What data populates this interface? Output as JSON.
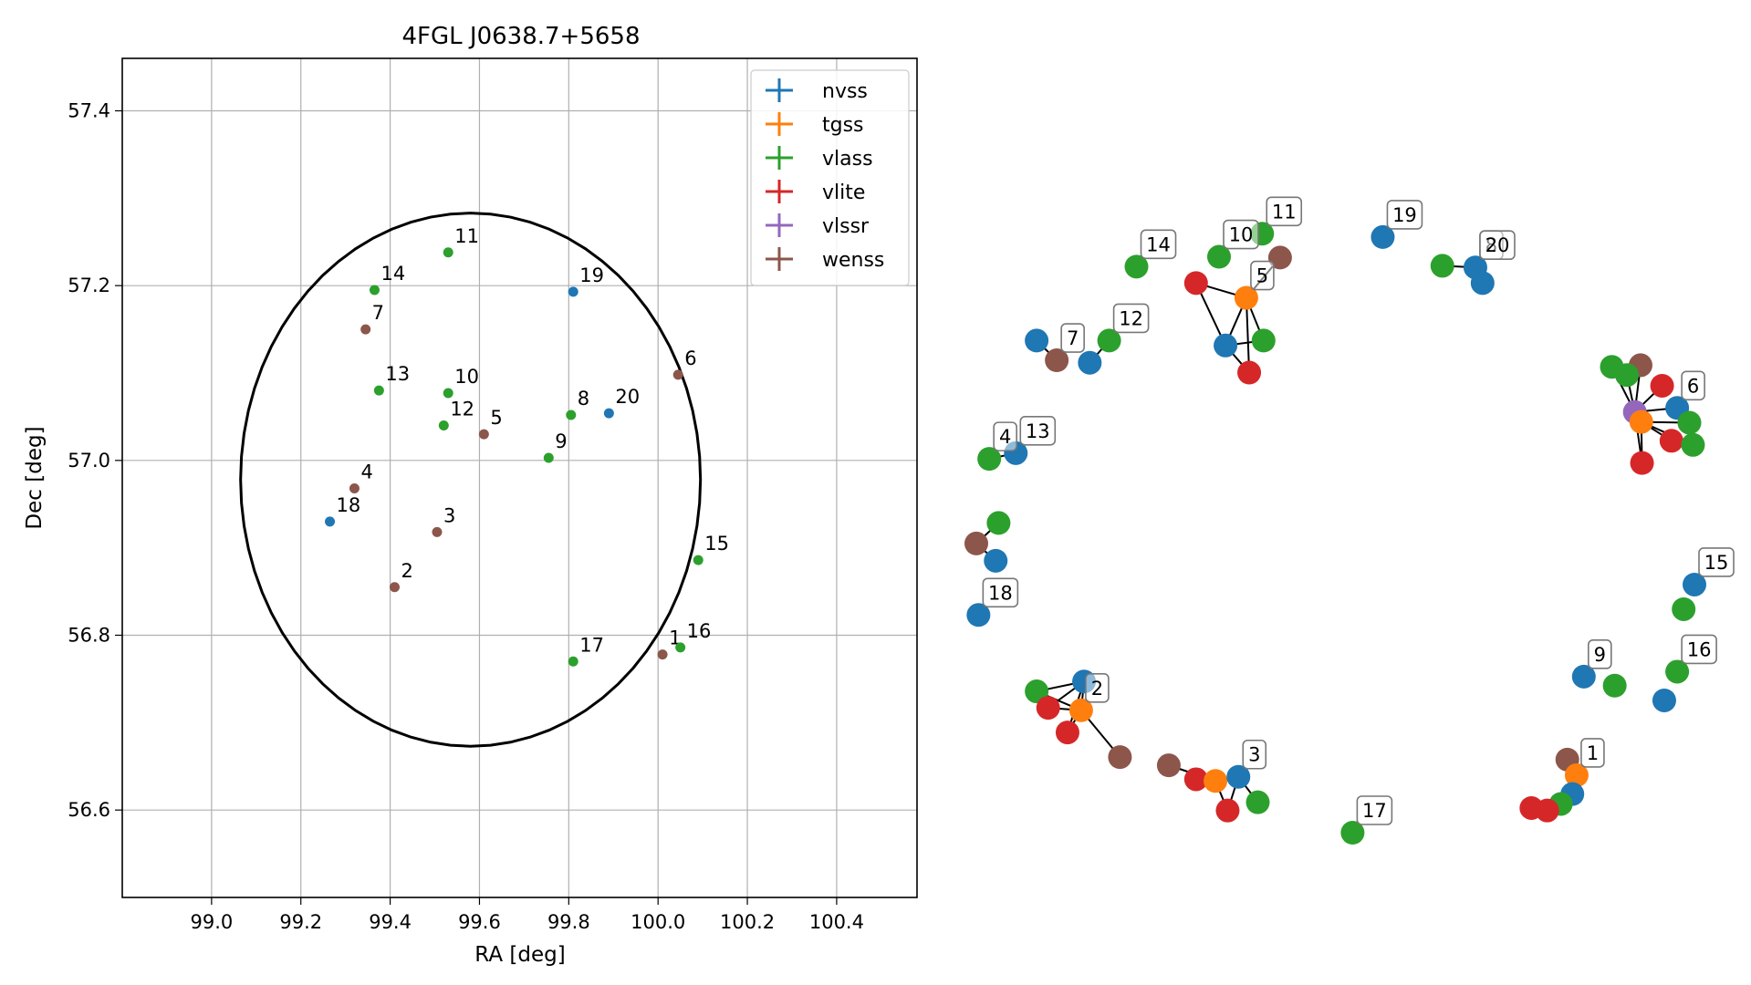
{
  "colors": {
    "nvss": "#1f77b4",
    "tgss": "#ff7f0e",
    "vlass": "#2ca02c",
    "vlite": "#d62728",
    "vlssr": "#9467bd",
    "wenss": "#8c564b"
  },
  "chart_data": [
    {
      "type": "scatter",
      "title": "4FGL J0638.7+5658",
      "xlabel": "RA [deg]",
      "ylabel": "Dec [deg]",
      "xlim": [
        98.8,
        100.58
      ],
      "ylim": [
        56.5,
        57.46
      ],
      "xticks": [
        99.0,
        99.2,
        99.4,
        99.6,
        99.8,
        100.0,
        100.2,
        100.4
      ],
      "xtick_labels": [
        "99.0",
        "99.2",
        "99.4",
        "99.6",
        "99.8",
        "100.0",
        "100.2",
        "100.4"
      ],
      "yticks": [
        56.6,
        56.8,
        57.0,
        57.2,
        57.4
      ],
      "ytick_labels": [
        "56.6",
        "56.8",
        "57.0",
        "57.2",
        "57.4"
      ],
      "grid": true,
      "legend_position": "top-right",
      "legend": [
        "nvss",
        "tgss",
        "vlass",
        "vlite",
        "vlssr",
        "wenss"
      ],
      "ellipse": {
        "center": [
          99.58,
          56.978
        ],
        "semi_ra_deg": 0.515,
        "semi_dec_deg": 0.305,
        "angle_deg": 0
      },
      "points": [
        {
          "label": "1",
          "survey": "wenss",
          "ra": 100.01,
          "dec": 56.778
        },
        {
          "label": "2",
          "survey": "wenss",
          "ra": 99.41,
          "dec": 56.855
        },
        {
          "label": "3",
          "survey": "wenss",
          "ra": 99.505,
          "dec": 56.918
        },
        {
          "label": "4",
          "survey": "wenss",
          "ra": 99.32,
          "dec": 56.968
        },
        {
          "label": "5",
          "survey": "wenss",
          "ra": 99.61,
          "dec": 57.03
        },
        {
          "label": "6",
          "survey": "wenss",
          "ra": 100.045,
          "dec": 57.098
        },
        {
          "label": "7",
          "survey": "wenss",
          "ra": 99.345,
          "dec": 57.15
        },
        {
          "label": "8",
          "survey": "vlass",
          "ra": 99.805,
          "dec": 57.052
        },
        {
          "label": "9",
          "survey": "vlass",
          "ra": 99.755,
          "dec": 57.003
        },
        {
          "label": "10",
          "survey": "vlass",
          "ra": 99.53,
          "dec": 57.077
        },
        {
          "label": "11",
          "survey": "vlass",
          "ra": 99.53,
          "dec": 57.238
        },
        {
          "label": "12",
          "survey": "vlass",
          "ra": 99.52,
          "dec": 57.04
        },
        {
          "label": "13",
          "survey": "vlass",
          "ra": 99.375,
          "dec": 57.08
        },
        {
          "label": "14",
          "survey": "vlass",
          "ra": 99.365,
          "dec": 57.195
        },
        {
          "label": "15",
          "survey": "vlass",
          "ra": 100.09,
          "dec": 56.886
        },
        {
          "label": "16",
          "survey": "vlass",
          "ra": 100.05,
          "dec": 56.786
        },
        {
          "label": "17",
          "survey": "vlass",
          "ra": 99.81,
          "dec": 56.77
        },
        {
          "label": "18",
          "survey": "nvss",
          "ra": 99.265,
          "dec": 56.93
        },
        {
          "label": "19",
          "survey": "nvss",
          "ra": 99.81,
          "dec": 57.193
        },
        {
          "label": "20",
          "survey": "nvss",
          "ra": 99.89,
          "dec": 57.054
        }
      ]
    },
    {
      "type": "scatter",
      "nodes": [
        {
          "survey": "nvss",
          "x": 0.084,
          "y": 0.248
        },
        {
          "survey": "wenss",
          "x": 0.112,
          "y": 0.272
        },
        {
          "survey": "nvss",
          "x": 0.158,
          "y": 0.275
        },
        {
          "survey": "vlass",
          "x": 0.185,
          "y": 0.248
        },
        {
          "survey": "vlass",
          "x": 0.223,
          "y": 0.158
        },
        {
          "survey": "vlass",
          "x": 0.338,
          "y": 0.146
        },
        {
          "survey": "vlass",
          "x": 0.398,
          "y": 0.118
        },
        {
          "survey": "wenss",
          "x": 0.423,
          "y": 0.147
        },
        {
          "survey": "vlite",
          "x": 0.306,
          "y": 0.178
        },
        {
          "survey": "tgss",
          "x": 0.376,
          "y": 0.196
        },
        {
          "survey": "nvss",
          "x": 0.347,
          "y": 0.254
        },
        {
          "survey": "vlass",
          "x": 0.4,
          "y": 0.248
        },
        {
          "survey": "vlite",
          "x": 0.38,
          "y": 0.287
        },
        {
          "survey": "nvss",
          "x": 0.566,
          "y": 0.122
        },
        {
          "survey": "vlass",
          "x": 0.649,
          "y": 0.157
        },
        {
          "survey": "nvss",
          "x": 0.695,
          "y": 0.159
        },
        {
          "survey": "nvss",
          "x": 0.705,
          "y": 0.178
        },
        {
          "survey": "vlass",
          "x": 0.885,
          "y": 0.28
        },
        {
          "survey": "wenss",
          "x": 0.925,
          "y": 0.278
        },
        {
          "survey": "vlass",
          "x": 0.906,
          "y": 0.29
        },
        {
          "survey": "vlite",
          "x": 0.955,
          "y": 0.303
        },
        {
          "survey": "nvss",
          "x": 0.976,
          "y": 0.33
        },
        {
          "survey": "vlssr",
          "x": 0.917,
          "y": 0.335
        },
        {
          "survey": "tgss",
          "x": 0.926,
          "y": 0.347
        },
        {
          "survey": "vlass",
          "x": 0.993,
          "y": 0.348
        },
        {
          "survey": "vlite",
          "x": 0.968,
          "y": 0.37
        },
        {
          "survey": "vlass",
          "x": 0.998,
          "y": 0.375
        },
        {
          "survey": "vlite",
          "x": 0.927,
          "y": 0.397
        },
        {
          "survey": "vlass",
          "x": 0.018,
          "y": 0.392
        },
        {
          "survey": "nvss",
          "x": 0.055,
          "y": 0.385
        },
        {
          "survey": "vlass",
          "x": 0.031,
          "y": 0.47
        },
        {
          "survey": "wenss",
          "x": 0.0,
          "y": 0.495
        },
        {
          "survey": "nvss",
          "x": 0.027,
          "y": 0.516
        },
        {
          "survey": "nvss",
          "x": 1.0,
          "y": 0.545
        },
        {
          "survey": "vlass",
          "x": 0.985,
          "y": 0.575
        },
        {
          "survey": "nvss",
          "x": 0.003,
          "y": 0.582
        },
        {
          "survey": "nvss",
          "x": 0.846,
          "y": 0.657
        },
        {
          "survey": "vlass",
          "x": 0.889,
          "y": 0.668
        },
        {
          "survey": "vlass",
          "x": 0.976,
          "y": 0.651
        },
        {
          "survey": "nvss",
          "x": 0.958,
          "y": 0.686
        },
        {
          "survey": "vlass",
          "x": 0.084,
          "y": 0.675
        },
        {
          "survey": "nvss",
          "x": 0.15,
          "y": 0.663
        },
        {
          "survey": "tgss",
          "x": 0.146,
          "y": 0.698
        },
        {
          "survey": "vlite",
          "x": 0.1,
          "y": 0.695
        },
        {
          "survey": "vlite",
          "x": 0.127,
          "y": 0.725
        },
        {
          "survey": "wenss",
          "x": 0.2,
          "y": 0.755
        },
        {
          "survey": "wenss",
          "x": 0.268,
          "y": 0.765
        },
        {
          "survey": "vlite",
          "x": 0.306,
          "y": 0.782
        },
        {
          "survey": "tgss",
          "x": 0.333,
          "y": 0.784
        },
        {
          "survey": "nvss",
          "x": 0.365,
          "y": 0.779
        },
        {
          "survey": "vlite",
          "x": 0.35,
          "y": 0.82
        },
        {
          "survey": "vlass",
          "x": 0.392,
          "y": 0.81
        },
        {
          "survey": "vlass",
          "x": 0.524,
          "y": 0.847
        },
        {
          "survey": "wenss",
          "x": 0.823,
          "y": 0.758
        },
        {
          "survey": "tgss",
          "x": 0.836,
          "y": 0.777
        },
        {
          "survey": "nvss",
          "x": 0.83,
          "y": 0.8
        },
        {
          "survey": "vlass",
          "x": 0.814,
          "y": 0.812
        },
        {
          "survey": "vlite",
          "x": 0.773,
          "y": 0.817
        },
        {
          "survey": "vlite",
          "x": 0.795,
          "y": 0.82
        }
      ],
      "edges": [
        [
          0,
          1
        ],
        [
          2,
          3
        ],
        [
          8,
          10
        ],
        [
          8,
          9
        ],
        [
          10,
          9
        ],
        [
          9,
          11
        ],
        [
          10,
          11
        ],
        [
          10,
          12
        ],
        [
          9,
          12
        ],
        [
          9,
          7
        ],
        [
          14,
          15
        ],
        [
          15,
          16
        ],
        [
          17,
          22
        ],
        [
          18,
          22
        ],
        [
          19,
          22
        ],
        [
          20,
          22
        ],
        [
          21,
          22
        ],
        [
          22,
          23
        ],
        [
          23,
          24
        ],
        [
          23,
          25
        ],
        [
          23,
          26
        ],
        [
          23,
          27
        ],
        [
          22,
          27
        ],
        [
          28,
          29
        ],
        [
          30,
          31
        ],
        [
          31,
          32
        ],
        [
          41,
          42
        ],
        [
          40,
          42
        ],
        [
          43,
          42
        ],
        [
          44,
          42
        ],
        [
          45,
          42
        ],
        [
          41,
          43
        ],
        [
          41,
          44
        ],
        [
          41,
          40
        ],
        [
          48,
          49
        ],
        [
          48,
          50
        ],
        [
          49,
          50
        ],
        [
          49,
          51
        ],
        [
          48,
          46
        ],
        [
          48,
          47
        ],
        [
          53,
          54
        ],
        [
          54,
          55
        ],
        [
          55,
          56
        ],
        [
          55,
          57
        ],
        [
          55,
          58
        ]
      ],
      "labels": [
        {
          "text": "7",
          "node": 1
        },
        {
          "text": "12",
          "node": 3
        },
        {
          "text": "14",
          "node": 4
        },
        {
          "text": "10",
          "node": 5
        },
        {
          "text": "11",
          "node": 6
        },
        {
          "text": "5",
          "node": 9
        },
        {
          "text": "19",
          "node": 13
        },
        {
          "text": "8",
          "node": 15
        },
        {
          "text": "20",
          "node": 15
        },
        {
          "text": "6",
          "node": 21
        },
        {
          "text": "13",
          "node": 29
        },
        {
          "text": "4",
          "node": 28
        },
        {
          "text": "18",
          "node": 35
        },
        {
          "text": "15",
          "node": 33
        },
        {
          "text": "9",
          "node": 36
        },
        {
          "text": "16",
          "node": 38
        },
        {
          "text": "2",
          "node": 42
        },
        {
          "text": "3",
          "node": 49
        },
        {
          "text": "17",
          "node": 52
        },
        {
          "text": "1",
          "node": 54
        }
      ]
    }
  ]
}
